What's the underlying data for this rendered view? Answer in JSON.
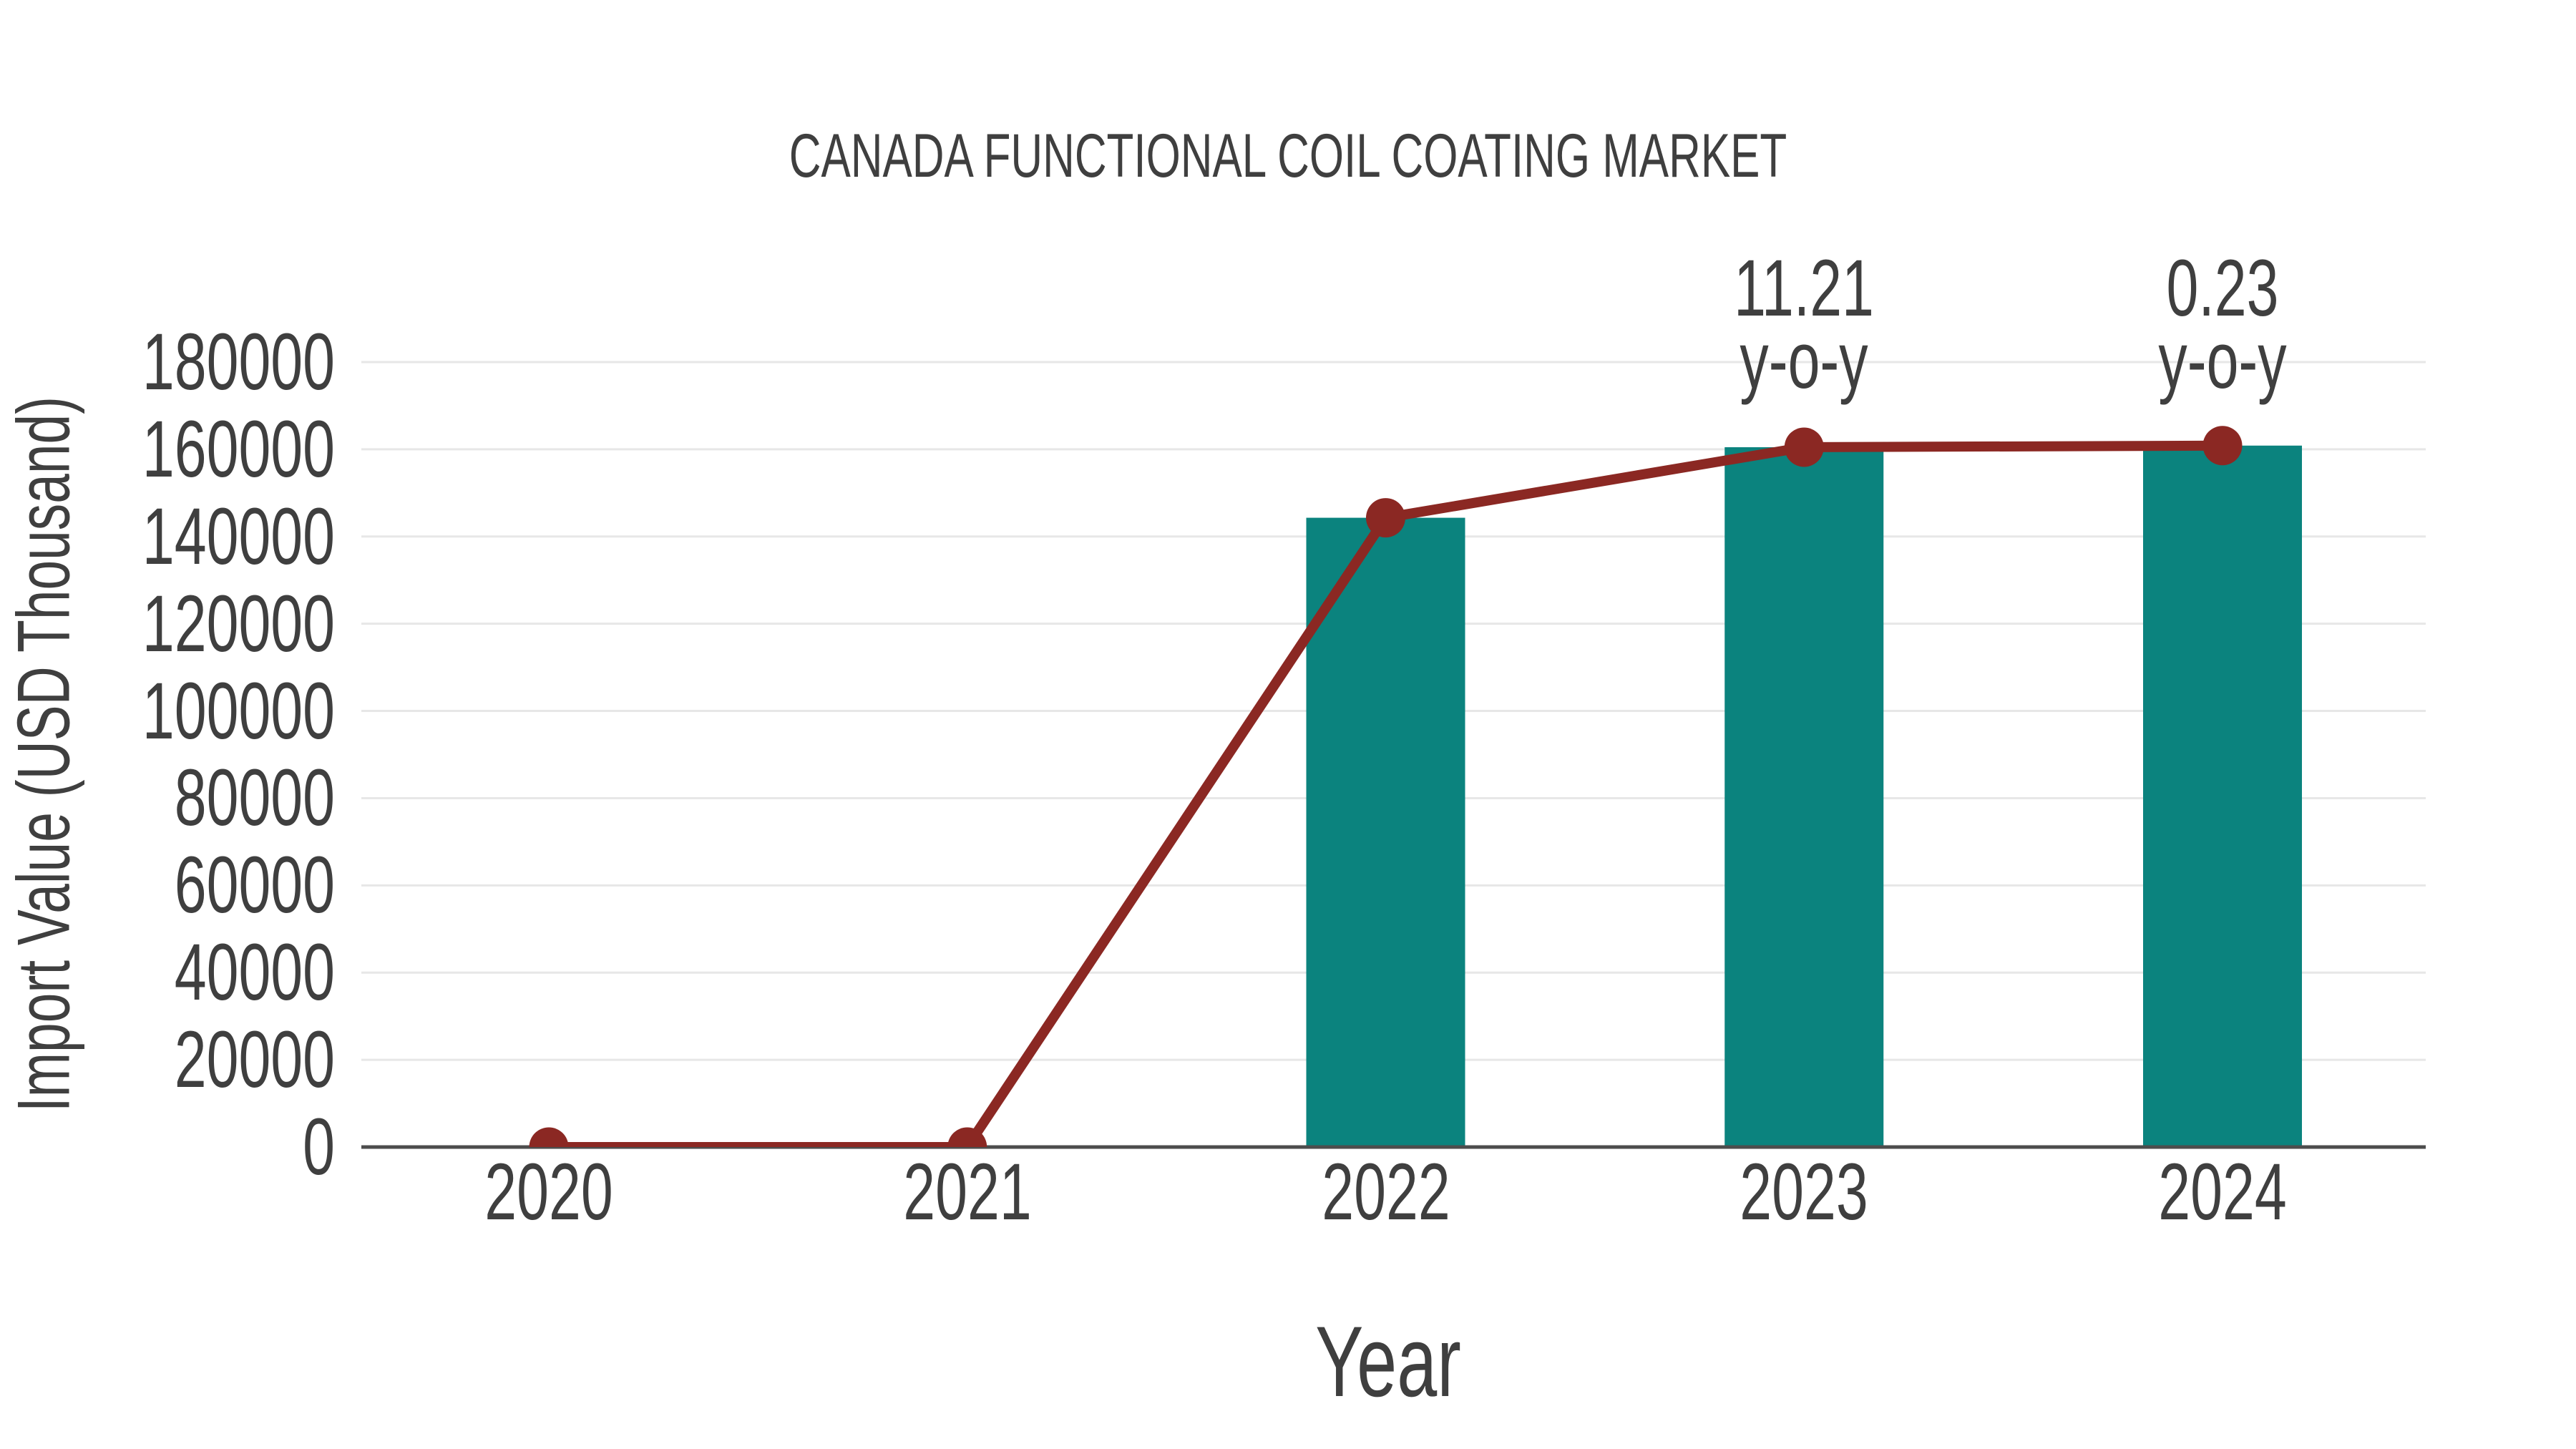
{
  "chart_data": {
    "type": "bar",
    "title": "CANADA FUNCTIONAL COIL COATING MARKET",
    "xlabel": "Year",
    "ylabel": "Import Value (USD Thousand)",
    "categories": [
      "2020",
      "2021",
      "2022",
      "2023",
      "2024"
    ],
    "series": [
      {
        "name": "Import Value bars",
        "type": "bar",
        "color": "#0b837e",
        "values": [
          0,
          0,
          144300,
          160476,
          160845
        ]
      },
      {
        "name": "Import Value line",
        "type": "line",
        "color": "#8b2823",
        "values": [
          0,
          0,
          144300,
          160476,
          160845
        ]
      }
    ],
    "annotations": [
      {
        "category": "2023",
        "lines": [
          "11.21",
          "y-o-y"
        ]
      },
      {
        "category": "2024",
        "lines": [
          "0.23",
          "y-o-y"
        ]
      }
    ],
    "ylim": [
      0,
      180000
    ],
    "ytick_step": 20000,
    "yticks": [
      "0",
      "20000",
      "40000",
      "60000",
      "80000",
      "100000",
      "120000",
      "140000",
      "160000",
      "180000"
    ],
    "grid": true,
    "legend": false,
    "colors": {
      "bar": "#0b837e",
      "line": "#8b2823",
      "grid": "#e7e7e7",
      "axis": "#4d4d4d",
      "text": "#3f3f3f",
      "background": "#ffffff"
    }
  }
}
